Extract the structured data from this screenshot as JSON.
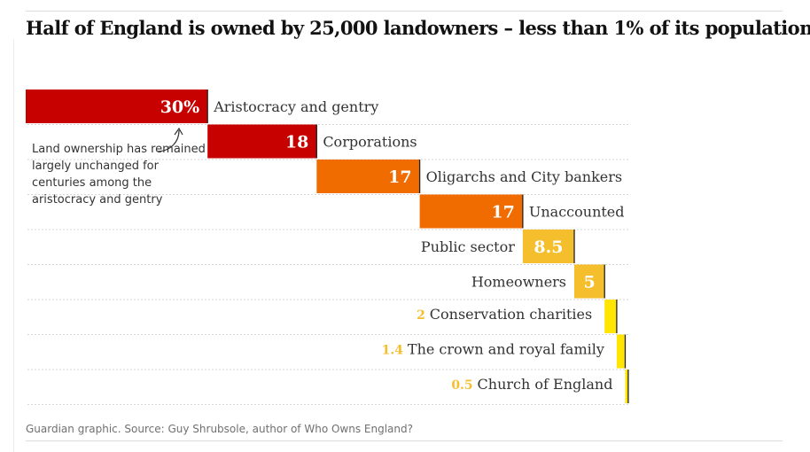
{
  "title": "Half of England is owned by 25,000 landowners – less than 1% of its population",
  "annotation": "Land ownership has remained largely unchanged for centuries among the aristocracy and gentry",
  "source": "Guardian graphic. Source: Guy Shrubsole, author of Who Owns England?",
  "colors": {
    "dark_red": "#c70000",
    "orange": "#f06b00",
    "amber": "#f5be2c",
    "yellow": "#ffe500",
    "small_value_text": "#f5be2c"
  },
  "chart_data": {
    "type": "bar",
    "subtype": "waterfall",
    "unit": "%",
    "title": "Half of England is owned by 25,000 landowners – less than 1% of its population",
    "categories": [
      "Aristocracy and gentry",
      "Corporations",
      "Oligarchs and City bankers",
      "Unaccounted",
      "Public sector",
      "Homeowners",
      "Conservation charities",
      "The crown and royal family",
      "Church of England"
    ],
    "values": [
      30,
      18,
      17,
      17,
      8.5,
      5,
      2,
      1.4,
      0.5
    ],
    "value_labels": [
      "30%",
      "18",
      "17",
      "17",
      "8.5",
      "5",
      "2",
      "1.4",
      "0.5"
    ],
    "colors": [
      "#c70000",
      "#c70000",
      "#f06b00",
      "#f06b00",
      "#f5be2c",
      "#f5be2c",
      "#ffe500",
      "#ffe500",
      "#ffe500"
    ],
    "xlim": [
      0,
      100
    ]
  }
}
